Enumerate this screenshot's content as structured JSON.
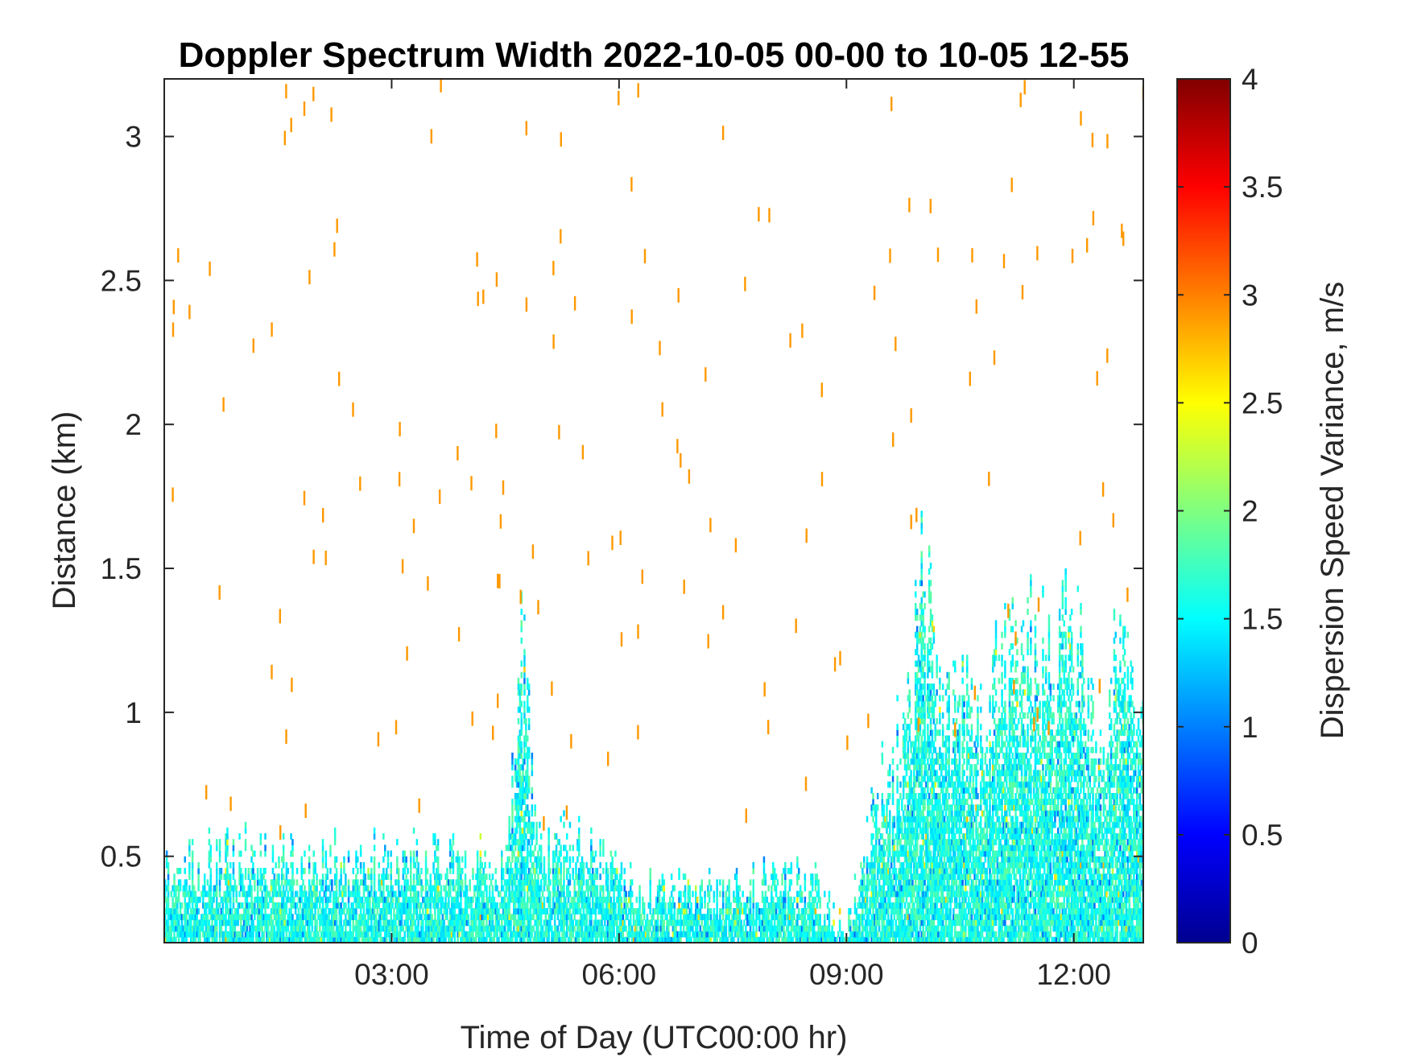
{
  "chart_data": {
    "type": "heatmap",
    "title": "Doppler Spectrum Width 2022-10-05 00-00 to 10-05 12-55",
    "xlabel": "Time of Day (UTC00:00 hr)",
    "ylabel": "Distance (km)",
    "colorbar_label": "Dispersion Speed Variance, m/s",
    "colormap": "jet",
    "x_unit": "hours",
    "xlim": [
      0.0,
      12.9167
    ],
    "ylim": [
      0.2,
      3.2
    ],
    "clim": [
      0,
      4
    ],
    "x_ticks": [
      {
        "value": 3,
        "label": "03:00"
      },
      {
        "value": 6,
        "label": "06:00"
      },
      {
        "value": 9,
        "label": "09:00"
      },
      {
        "value": 12,
        "label": "12:00"
      }
    ],
    "y_ticks": [
      {
        "value": 0.5,
        "label": "0.5"
      },
      {
        "value": 1.0,
        "label": "1"
      },
      {
        "value": 1.5,
        "label": "1.5"
      },
      {
        "value": 2.0,
        "label": "2"
      },
      {
        "value": 2.5,
        "label": "2.5"
      },
      {
        "value": 3.0,
        "label": "3"
      }
    ],
    "colorbar_ticks": [
      {
        "value": 0,
        "label": "0"
      },
      {
        "value": 0.5,
        "label": "0.5"
      },
      {
        "value": 1,
        "label": "1"
      },
      {
        "value": 1.5,
        "label": "1.5"
      },
      {
        "value": 2,
        "label": "2"
      },
      {
        "value": 2.5,
        "label": "2.5"
      },
      {
        "value": 3,
        "label": "3"
      },
      {
        "value": 3.5,
        "label": "3.5"
      },
      {
        "value": 4,
        "label": "4"
      }
    ],
    "grid": false,
    "legend": "colorbar-right",
    "echo_region_top_km": [
      [
        0.0,
        0.48
      ],
      [
        0.5,
        0.52
      ],
      [
        1.0,
        0.53
      ],
      [
        1.5,
        0.5
      ],
      [
        2.0,
        0.52
      ],
      [
        2.5,
        0.53
      ],
      [
        3.0,
        0.53
      ],
      [
        3.5,
        0.53
      ],
      [
        4.0,
        0.52
      ],
      [
        4.5,
        0.48
      ],
      [
        4.65,
        1.2
      ],
      [
        4.75,
        1.3
      ],
      [
        4.85,
        0.7
      ],
      [
        5.0,
        0.55
      ],
      [
        5.5,
        0.6
      ],
      [
        6.0,
        0.45
      ],
      [
        6.5,
        0.4
      ],
      [
        7.0,
        0.4
      ],
      [
        7.5,
        0.42
      ],
      [
        8.0,
        0.45
      ],
      [
        8.5,
        0.45
      ],
      [
        8.8,
        0.3
      ],
      [
        9.0,
        0.25
      ],
      [
        9.4,
        0.75
      ],
      [
        9.8,
        1.0
      ],
      [
        10.0,
        1.55
      ],
      [
        10.2,
        1.2
      ],
      [
        10.5,
        1.1
      ],
      [
        10.8,
        0.95
      ],
      [
        11.0,
        1.2
      ],
      [
        11.3,
        1.35
      ],
      [
        11.6,
        1.3
      ],
      [
        12.0,
        1.35
      ],
      [
        12.3,
        1.0
      ],
      [
        12.6,
        1.25
      ],
      [
        12.9167,
        1.0
      ]
    ],
    "typical_value_range": [
      1.3,
      1.9
    ],
    "scatter_value": 2.9
  }
}
